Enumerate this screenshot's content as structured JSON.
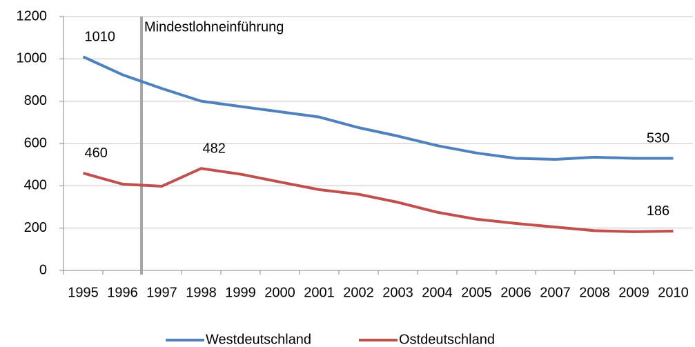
{
  "chart_data": {
    "type": "line",
    "categories": [
      "1995",
      "1996",
      "1997",
      "1998",
      "1999",
      "2000",
      "2001",
      "2002",
      "2003",
      "2004",
      "2005",
      "2006",
      "2007",
      "2008",
      "2009",
      "2010"
    ],
    "series": [
      {
        "name": "Westdeutschland",
        "color": "#4f81bd",
        "values": [
          1010,
          925,
          860,
          800,
          775,
          750,
          725,
          675,
          635,
          590,
          555,
          530,
          525,
          535,
          530,
          530
        ],
        "value_labels": [
          "1010",
          null,
          null,
          null,
          null,
          null,
          null,
          null,
          null,
          null,
          null,
          null,
          null,
          null,
          null,
          "530"
        ]
      },
      {
        "name": "Ostdeutschland",
        "color": "#c0504d",
        "values": [
          460,
          408,
          398,
          482,
          455,
          418,
          382,
          360,
          322,
          275,
          242,
          222,
          205,
          188,
          183,
          186
        ],
        "value_labels": [
          "460",
          null,
          null,
          "482",
          null,
          null,
          null,
          null,
          null,
          null,
          null,
          null,
          null,
          null,
          null,
          "186"
        ]
      }
    ],
    "annotations": [
      {
        "text": "Mindestlohneinführung"
      }
    ],
    "ylim": [
      0,
      1200
    ],
    "yticks": [
      0,
      200,
      400,
      600,
      800,
      1000,
      1200
    ],
    "grid": true,
    "legend": "bottom"
  }
}
